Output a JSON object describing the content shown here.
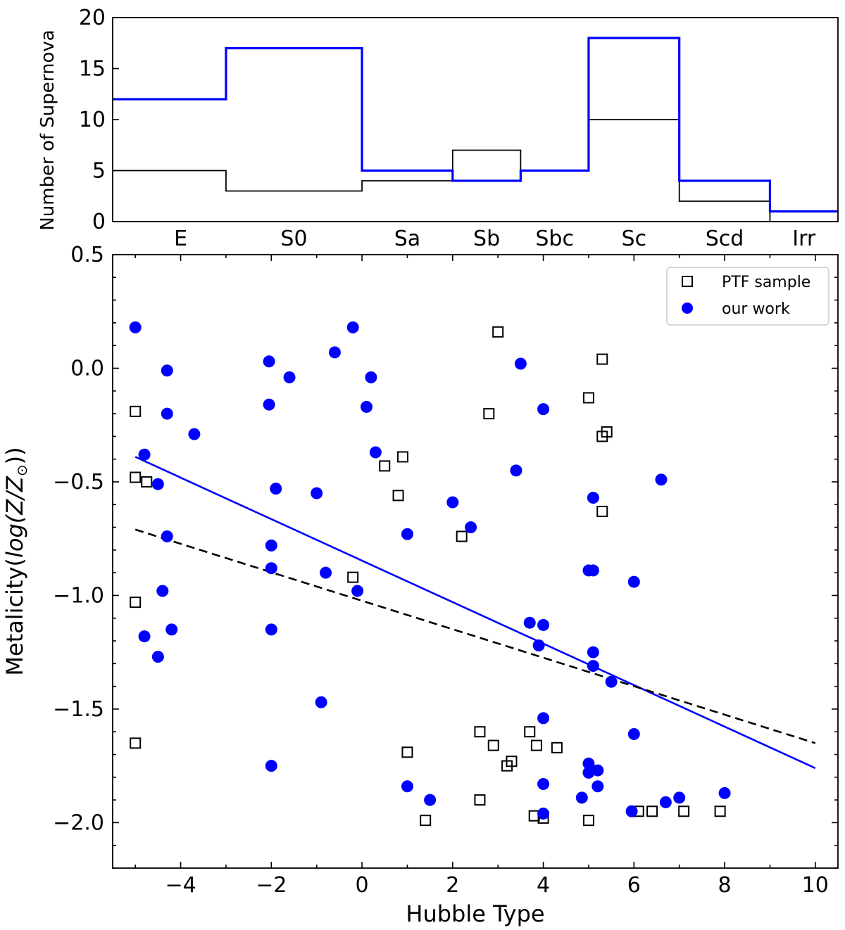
{
  "chart_data": [
    {
      "type": "histogram",
      "ylabel": "Number of Supernova",
      "ylim": [
        0,
        20
      ],
      "yticks": [
        0,
        5,
        10,
        15,
        20
      ],
      "categories": [
        "E",
        "S0",
        "Sa",
        "Sb",
        "Sbc",
        "Sc",
        "Scd",
        "Irr"
      ],
      "bin_edges": [
        -5,
        -3,
        0,
        2,
        3.5,
        5,
        7,
        9,
        10.5
      ],
      "series": [
        {
          "name": "our work",
          "color": "#0000ff",
          "values": [
            12,
            17,
            5,
            4,
            5,
            18,
            4,
            1
          ]
        },
        {
          "name": "PTF sample",
          "color": "#000000",
          "values": [
            5,
            3,
            4,
            7,
            5,
            10,
            2,
            0
          ]
        }
      ]
    },
    {
      "type": "scatter",
      "xlabel": "Hubble Type",
      "ylabel_prefix": "Metalicity(",
      "ylabel_log": "log(Z/Z",
      "ylabel_suffix": "))",
      "ylabel_sun": "⊙",
      "xlim": [
        -5.5,
        10.5
      ],
      "ylim": [
        -2.2,
        0.5
      ],
      "xticks": [
        -4,
        -2,
        0,
        2,
        4,
        6,
        8,
        10
      ],
      "xtick_labels": [
        "−4",
        "−2",
        "0",
        "2",
        "4",
        "6",
        "8",
        "10"
      ],
      "yticks": [
        0.5,
        0.0,
        -0.5,
        -1.0,
        -1.5,
        -2.0
      ],
      "ytick_labels": [
        "0.5",
        "0.0",
        "−0.5",
        "−1.0",
        "−1.5",
        "−2.0"
      ],
      "legend": {
        "location": "top-right",
        "entries": [
          "PTF sample",
          "our work"
        ]
      },
      "series": [
        {
          "name": "PTF sample",
          "marker": "open-square",
          "color": "#000000",
          "points": [
            [
              -5,
              -0.19
            ],
            [
              -5,
              -0.48
            ],
            [
              -4.75,
              -0.5
            ],
            [
              -5,
              -1.03
            ],
            [
              -5,
              -1.65
            ],
            [
              -0.2,
              -0.92
            ],
            [
              0.5,
              -0.43
            ],
            [
              0.9,
              -0.39
            ],
            [
              0.8,
              -0.56
            ],
            [
              1,
              -1.69
            ],
            [
              1.4,
              -1.99
            ],
            [
              2.2,
              -0.74
            ],
            [
              2.6,
              -1.6
            ],
            [
              2.6,
              -1.9
            ],
            [
              2.8,
              -0.2
            ],
            [
              2.9,
              -1.66
            ],
            [
              3,
              0.16
            ],
            [
              3.2,
              -1.75
            ],
            [
              3.3,
              -1.73
            ],
            [
              3.7,
              -1.6
            ],
            [
              3.8,
              -1.97
            ],
            [
              3.85,
              -1.66
            ],
            [
              4,
              -1.98
            ],
            [
              4.3,
              -1.67
            ],
            [
              5,
              -0.13
            ],
            [
              5,
              -1.99
            ],
            [
              5.3,
              0.04
            ],
            [
              5.3,
              -0.3
            ],
            [
              5.4,
              -0.28
            ],
            [
              5.3,
              -0.63
            ],
            [
              6.1,
              -1.95
            ],
            [
              6.4,
              -1.95
            ],
            [
              7.1,
              -1.95
            ],
            [
              7.9,
              -1.95
            ]
          ]
        },
        {
          "name": "our work",
          "marker": "filled-circle",
          "color": "#0000ff",
          "points": [
            [
              -5,
              0.18
            ],
            [
              -4.8,
              -0.38
            ],
            [
              -4.3,
              -0.01
            ],
            [
              -4.3,
              -0.2
            ],
            [
              -3.7,
              -0.29
            ],
            [
              -4.5,
              -0.51
            ],
            [
              -4.3,
              -0.74
            ],
            [
              -4.4,
              -0.98
            ],
            [
              -4.2,
              -1.15
            ],
            [
              -4.8,
              -1.18
            ],
            [
              -4.5,
              -1.27
            ],
            [
              -2.05,
              0.03
            ],
            [
              -2.05,
              -0.16
            ],
            [
              -1.6,
              -0.04
            ],
            [
              -1.9,
              -0.53
            ],
            [
              -2,
              -0.78
            ],
            [
              -2,
              -0.88
            ],
            [
              -2,
              -1.15
            ],
            [
              -2,
              -1.75
            ],
            [
              -1,
              -0.55
            ],
            [
              -0.6,
              0.07
            ],
            [
              -0.8,
              -0.9
            ],
            [
              -0.9,
              -1.47
            ],
            [
              -0.2,
              0.18
            ],
            [
              -0.1,
              -0.98
            ],
            [
              0.1,
              -0.17
            ],
            [
              0.2,
              -0.04
            ],
            [
              0.3,
              -0.37
            ],
            [
              1,
              -0.73
            ],
            [
              1,
              -1.84
            ],
            [
              1.5,
              -1.9
            ],
            [
              2,
              -0.59
            ],
            [
              2.4,
              -0.7
            ],
            [
              3.4,
              -0.45
            ],
            [
              3.5,
              0.02
            ],
            [
              3.7,
              -1.12
            ],
            [
              3.9,
              -1.22
            ],
            [
              4,
              -0.18
            ],
            [
              4,
              -1.13
            ],
            [
              4,
              -1.54
            ],
            [
              4,
              -1.83
            ],
            [
              4,
              -1.96
            ],
            [
              4.85,
              -1.89
            ],
            [
              5,
              -0.89
            ],
            [
              5,
              -1.74
            ],
            [
              5,
              -1.78
            ],
            [
              5.1,
              -0.57
            ],
            [
              5.1,
              -0.89
            ],
            [
              5.1,
              -1.25
            ],
            [
              5.1,
              -1.31
            ],
            [
              5.2,
              -1.77
            ],
            [
              5.2,
              -1.84
            ],
            [
              5.5,
              -1.38
            ],
            [
              6,
              -0.94
            ],
            [
              6,
              -1.61
            ],
            [
              5.95,
              -1.95
            ],
            [
              6.6,
              -0.49
            ],
            [
              6.7,
              -1.91
            ],
            [
              7,
              -1.89
            ],
            [
              8,
              -1.87
            ]
          ]
        }
      ],
      "fit_lines": [
        {
          "name": "our work fit",
          "color": "#0000ff",
          "style": "solid",
          "x": [
            -5,
            10
          ],
          "y": [
            -0.39,
            -1.76
          ]
        },
        {
          "name": "PTF fit",
          "color": "#000000",
          "style": "dashed",
          "x": [
            -5,
            10
          ],
          "y": [
            -0.71,
            -1.65
          ]
        }
      ]
    }
  ]
}
